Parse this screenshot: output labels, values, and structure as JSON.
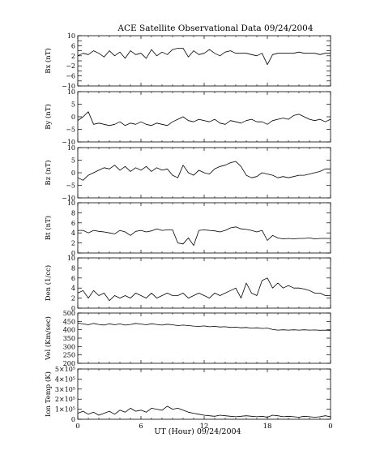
{
  "chart_data": {
    "type": "line",
    "title": "ACE Satellite Observational Data   09/24/2004",
    "xlabel": "UT (Hour)   09/24/2004",
    "x_ticks": [
      "0",
      "6",
      "12",
      "18",
      "0"
    ],
    "xlim": [
      0,
      24
    ],
    "panels": [
      {
        "ylabel": "Bx (nT)",
        "ylim": [
          -10,
          10
        ],
        "y_ticks": [
          {
            "v": 10,
            "label": "10"
          },
          {
            "v": 8,
            "label": ""
          },
          {
            "v": 6,
            "label": "6"
          },
          {
            "v": 4,
            "label": ""
          },
          {
            "v": 2,
            "label": "2"
          },
          {
            "v": 0,
            "label": ""
          },
          {
            "v": -2,
            "label": "−2"
          },
          {
            "v": -4,
            "label": ""
          },
          {
            "v": -6,
            "label": "−6"
          },
          {
            "v": -8,
            "label": ""
          },
          {
            "v": -10,
            "label": "−10"
          }
        ],
        "series": [
          {
            "x": [
              0,
              0.5,
              1,
              1.5,
              2,
              2.5,
              3,
              3.5,
              4,
              4.5,
              5,
              5.5,
              6,
              6.5,
              7,
              7.5,
              8,
              8.5,
              9,
              9.5,
              10,
              10.5,
              11,
              11.5,
              12,
              12.5,
              13,
              13.5,
              14,
              14.5,
              15,
              15.5,
              16,
              16.5,
              17,
              17.5,
              18,
              18.5,
              19,
              19.5,
              20,
              20.5,
              21,
              21.5,
              22,
              22.5,
              23,
              23.5,
              24
            ],
            "values": [
              2,
              3,
              2.5,
              4,
              3,
              1.5,
              4,
              2,
              3.5,
              1,
              4,
              2.5,
              3,
              1,
              4.5,
              2,
              3.5,
              2.5,
              4.5,
              5,
              5,
              1.5,
              4,
              2.5,
              3,
              4.5,
              3,
              2,
              3.5,
              4,
              3,
              3,
              3,
              2.5,
              2,
              3,
              -1.5,
              2.5,
              3,
              3,
              3,
              3,
              3.5,
              3,
              3,
              3,
              2.5,
              3,
              3
            ]
          }
        ]
      },
      {
        "ylabel": "By (nT)",
        "ylim": [
          -10,
          10
        ],
        "y_ticks": [
          {
            "v": 10,
            "label": "10"
          },
          {
            "v": 5,
            "label": "5"
          },
          {
            "v": 0,
            "label": "0"
          },
          {
            "v": -5,
            "label": "−5"
          },
          {
            "v": -10,
            "label": "−10"
          }
        ],
        "series": [
          {
            "x": [
              0,
              0.5,
              1,
              1.5,
              2,
              2.5,
              3,
              3.5,
              4,
              4.5,
              5,
              5.5,
              6,
              6.5,
              7,
              7.5,
              8,
              8.5,
              9,
              9.5,
              10,
              10.5,
              11,
              11.5,
              12,
              12.5,
              13,
              13.5,
              14,
              14.5,
              15,
              15.5,
              16,
              16.5,
              17,
              17.5,
              18,
              18.5,
              19,
              19.5,
              20,
              20.5,
              21,
              21.5,
              22,
              22.5,
              23,
              23.5,
              24
            ],
            "values": [
              -1.5,
              0,
              2,
              -3,
              -2.5,
              -3,
              -3.5,
              -3,
              -2,
              -3.5,
              -2.5,
              -3,
              -2,
              -3,
              -3.5,
              -2.5,
              -3,
              -3.5,
              -2,
              -1,
              0,
              -1.5,
              -2,
              -1,
              -1.5,
              -2,
              -1,
              -2.5,
              -3,
              -1.5,
              -2,
              -2.5,
              -1.5,
              -1,
              -2,
              -2,
              -3,
              -1.5,
              -1,
              -0.5,
              -1,
              0.5,
              1,
              0,
              -1,
              -1.5,
              -1,
              -2,
              -1
            ]
          }
        ]
      },
      {
        "ylabel": "Bz (nT)",
        "ylim": [
          -10,
          10
        ],
        "y_ticks": [
          {
            "v": 10,
            "label": "10"
          },
          {
            "v": 5,
            "label": "5"
          },
          {
            "v": 0,
            "label": "0"
          },
          {
            "v": -5,
            "label": "−5"
          },
          {
            "v": -10,
            "label": "−10"
          }
        ],
        "series": [
          {
            "x": [
              0,
              0.5,
              1,
              1.5,
              2,
              2.5,
              3,
              3.5,
              4,
              4.5,
              5,
              5.5,
              6,
              6.5,
              7,
              7.5,
              8,
              8.5,
              9,
              9.5,
              10,
              10.5,
              11,
              11.5,
              12,
              12.5,
              13,
              13.5,
              14,
              14.5,
              15,
              15.5,
              16,
              16.5,
              17,
              17.5,
              18,
              18.5,
              19,
              19.5,
              20,
              20.5,
              21,
              21.5,
              22,
              22.5,
              23,
              23.5,
              24
            ],
            "values": [
              -2,
              -3,
              -1,
              0,
              1,
              2,
              1.5,
              3,
              1,
              2.5,
              0.5,
              2,
              1,
              2.5,
              0.5,
              2,
              1,
              1.5,
              -1,
              -2,
              3,
              0,
              -1,
              1,
              0,
              -0.5,
              1.5,
              2.5,
              3,
              4,
              4.5,
              2.5,
              -1,
              -2,
              -1.5,
              0,
              -0.5,
              -1,
              -2,
              -1.5,
              -2,
              -1.5,
              -1,
              -1,
              -0.5,
              0,
              0.5,
              1.5,
              1.5
            ]
          }
        ]
      },
      {
        "ylabel": "Bt (nT)",
        "ylim": [
          0,
          10
        ],
        "y_ticks": [
          {
            "v": 10,
            "label": "10"
          },
          {
            "v": 8,
            "label": "8"
          },
          {
            "v": 6,
            "label": "6"
          },
          {
            "v": 4,
            "label": "4"
          },
          {
            "v": 2,
            "label": "2"
          },
          {
            "v": 0,
            "label": "0"
          }
        ],
        "series": [
          {
            "x": [
              0,
              0.5,
              1,
              1.5,
              2,
              2.5,
              3,
              3.5,
              4,
              4.5,
              5,
              5.5,
              6,
              6.5,
              7,
              7.5,
              8,
              8.5,
              9,
              9.5,
              10,
              10.5,
              11,
              11.5,
              12,
              12.5,
              13,
              13.5,
              14,
              14.5,
              15,
              15.5,
              16,
              16.5,
              17,
              17.5,
              18,
              18.5,
              19,
              19.5,
              20,
              20.5,
              21,
              21.5,
              22,
              22.5,
              23,
              23.5,
              24
            ],
            "values": [
              4.5,
              4.5,
              4,
              4.5,
              4.3,
              4.2,
              4,
              3.8,
              4.5,
              4.2,
              3.5,
              4.3,
              4.5,
              4.2,
              4.4,
              4.8,
              4.5,
              4.6,
              4.6,
              2,
              1.8,
              3,
              1.5,
              4.5,
              4.6,
              4.5,
              4.4,
              4.2,
              4.5,
              5,
              5.2,
              4.8,
              4.7,
              4.5,
              4.2,
              4.5,
              2.5,
              3.5,
              3,
              2.8,
              2.9,
              2.8,
              2.9,
              2.9,
              3,
              2.8,
              2.9,
              2.9,
              2.9
            ]
          }
        ]
      },
      {
        "ylabel": "Den (1/cc)",
        "ylim": [
          0,
          10
        ],
        "y_ticks": [
          {
            "v": 10,
            "label": "10"
          },
          {
            "v": 8,
            "label": "8"
          },
          {
            "v": 6,
            "label": "6"
          },
          {
            "v": 4,
            "label": "4"
          },
          {
            "v": 2,
            "label": "2"
          },
          {
            "v": 0,
            "label": "0"
          }
        ],
        "series": [
          {
            "x": [
              0,
              0.5,
              1,
              1.5,
              2,
              2.5,
              3,
              3.5,
              4,
              4.5,
              5,
              5.5,
              6,
              6.5,
              7,
              7.5,
              8,
              8.5,
              9,
              9.5,
              10,
              10.5,
              11,
              11.5,
              12,
              12.5,
              13,
              13.5,
              14,
              14.5,
              15,
              15.5,
              16,
              16.5,
              17,
              17.5,
              18,
              18.5,
              19,
              19.5,
              20,
              20.5,
              21,
              21.5,
              22,
              22.5,
              23,
              23.5,
              24
            ],
            "values": [
              3,
              3.5,
              2,
              3.5,
              2.5,
              3,
              1.5,
              2.5,
              2,
              2.5,
              2,
              3,
              2.5,
              2,
              3,
              2,
              2.5,
              3,
              2.5,
              2.5,
              3,
              2,
              2.5,
              3,
              2.5,
              2,
              3,
              2.5,
              3,
              3.5,
              4,
              2,
              5,
              3,
              2.5,
              5.5,
              6,
              4,
              5,
              4,
              4.5,
              4,
              4,
              3.8,
              3.5,
              3,
              3,
              2.5,
              2.5
            ]
          }
        ]
      },
      {
        "ylabel": "Vel (Km/sec)",
        "ylim": [
          200,
          500
        ],
        "y_ticks": [
          {
            "v": 500,
            "label": "500"
          },
          {
            "v": 450,
            "label": "450"
          },
          {
            "v": 400,
            "label": "400"
          },
          {
            "v": 350,
            "label": "350"
          },
          {
            "v": 300,
            "label": "300"
          },
          {
            "v": 250,
            "label": "250"
          },
          {
            "v": 200,
            "label": "200"
          }
        ],
        "series": [
          {
            "x": [
              0,
              0.5,
              1,
              1.5,
              2,
              2.5,
              3,
              3.5,
              4,
              4.5,
              5,
              5.5,
              6,
              6.5,
              7,
              7.5,
              8,
              8.5,
              9,
              9.5,
              10,
              10.5,
              11,
              11.5,
              12,
              12.5,
              13,
              13.5,
              14,
              14.5,
              15,
              15.5,
              16,
              16.5,
              17,
              17.5,
              18,
              18.5,
              19,
              19.5,
              20,
              20.5,
              21,
              21.5,
              22,
              22.5,
              23,
              23.5,
              24
            ],
            "values": [
              440,
              435,
              430,
              438,
              432,
              428,
              436,
              430,
              435,
              428,
              432,
              438,
              434,
              430,
              436,
              432,
              428,
              433,
              430,
              425,
              428,
              425,
              422,
              420,
              423,
              418,
              420,
              417,
              418,
              414,
              416,
              412,
              414,
              410,
              412,
              408,
              410,
              402,
              398,
              400,
              398,
              400,
              398,
              400,
              398,
              399,
              397,
              398,
              396
            ]
          }
        ]
      },
      {
        "ylabel": "Ion Temp (K)",
        "ylim": [
          0,
          500000
        ],
        "y_ticks": [
          {
            "v": 500000,
            "label": "5×10⁵"
          },
          {
            "v": 400000,
            "label": "4×10⁵"
          },
          {
            "v": 300000,
            "label": "3×10⁵"
          },
          {
            "v": 200000,
            "label": "2×10⁵"
          },
          {
            "v": 100000,
            "label": "1×10⁵"
          },
          {
            "v": 0,
            "label": "0"
          }
        ],
        "series": [
          {
            "x": [
              0,
              0.5,
              1,
              1.5,
              2,
              2.5,
              3,
              3.5,
              4,
              4.5,
              5,
              5.5,
              6,
              6.5,
              7,
              7.5,
              8,
              8.5,
              9,
              9.5,
              10,
              10.5,
              11,
              11.5,
              12,
              12.5,
              13,
              13.5,
              14,
              14.5,
              15,
              15.5,
              16,
              16.5,
              17,
              17.5,
              18,
              18.5,
              19,
              19.5,
              20,
              20.5,
              21,
              21.5,
              22,
              22.5,
              23,
              23.5,
              24
            ],
            "values": [
              60000,
              80000,
              50000,
              70000,
              40000,
              60000,
              80000,
              50000,
              90000,
              70000,
              110000,
              80000,
              90000,
              70000,
              110000,
              100000,
              90000,
              130000,
              100000,
              110000,
              90000,
              70000,
              60000,
              50000,
              40000,
              35000,
              30000,
              40000,
              35000,
              30000,
              25000,
              30000,
              35000,
              30000,
              25000,
              30000,
              20000,
              40000,
              35000,
              25000,
              30000,
              25000,
              20000,
              30000,
              25000,
              20000,
              25000,
              35000,
              25000
            ]
          }
        ]
      }
    ]
  }
}
